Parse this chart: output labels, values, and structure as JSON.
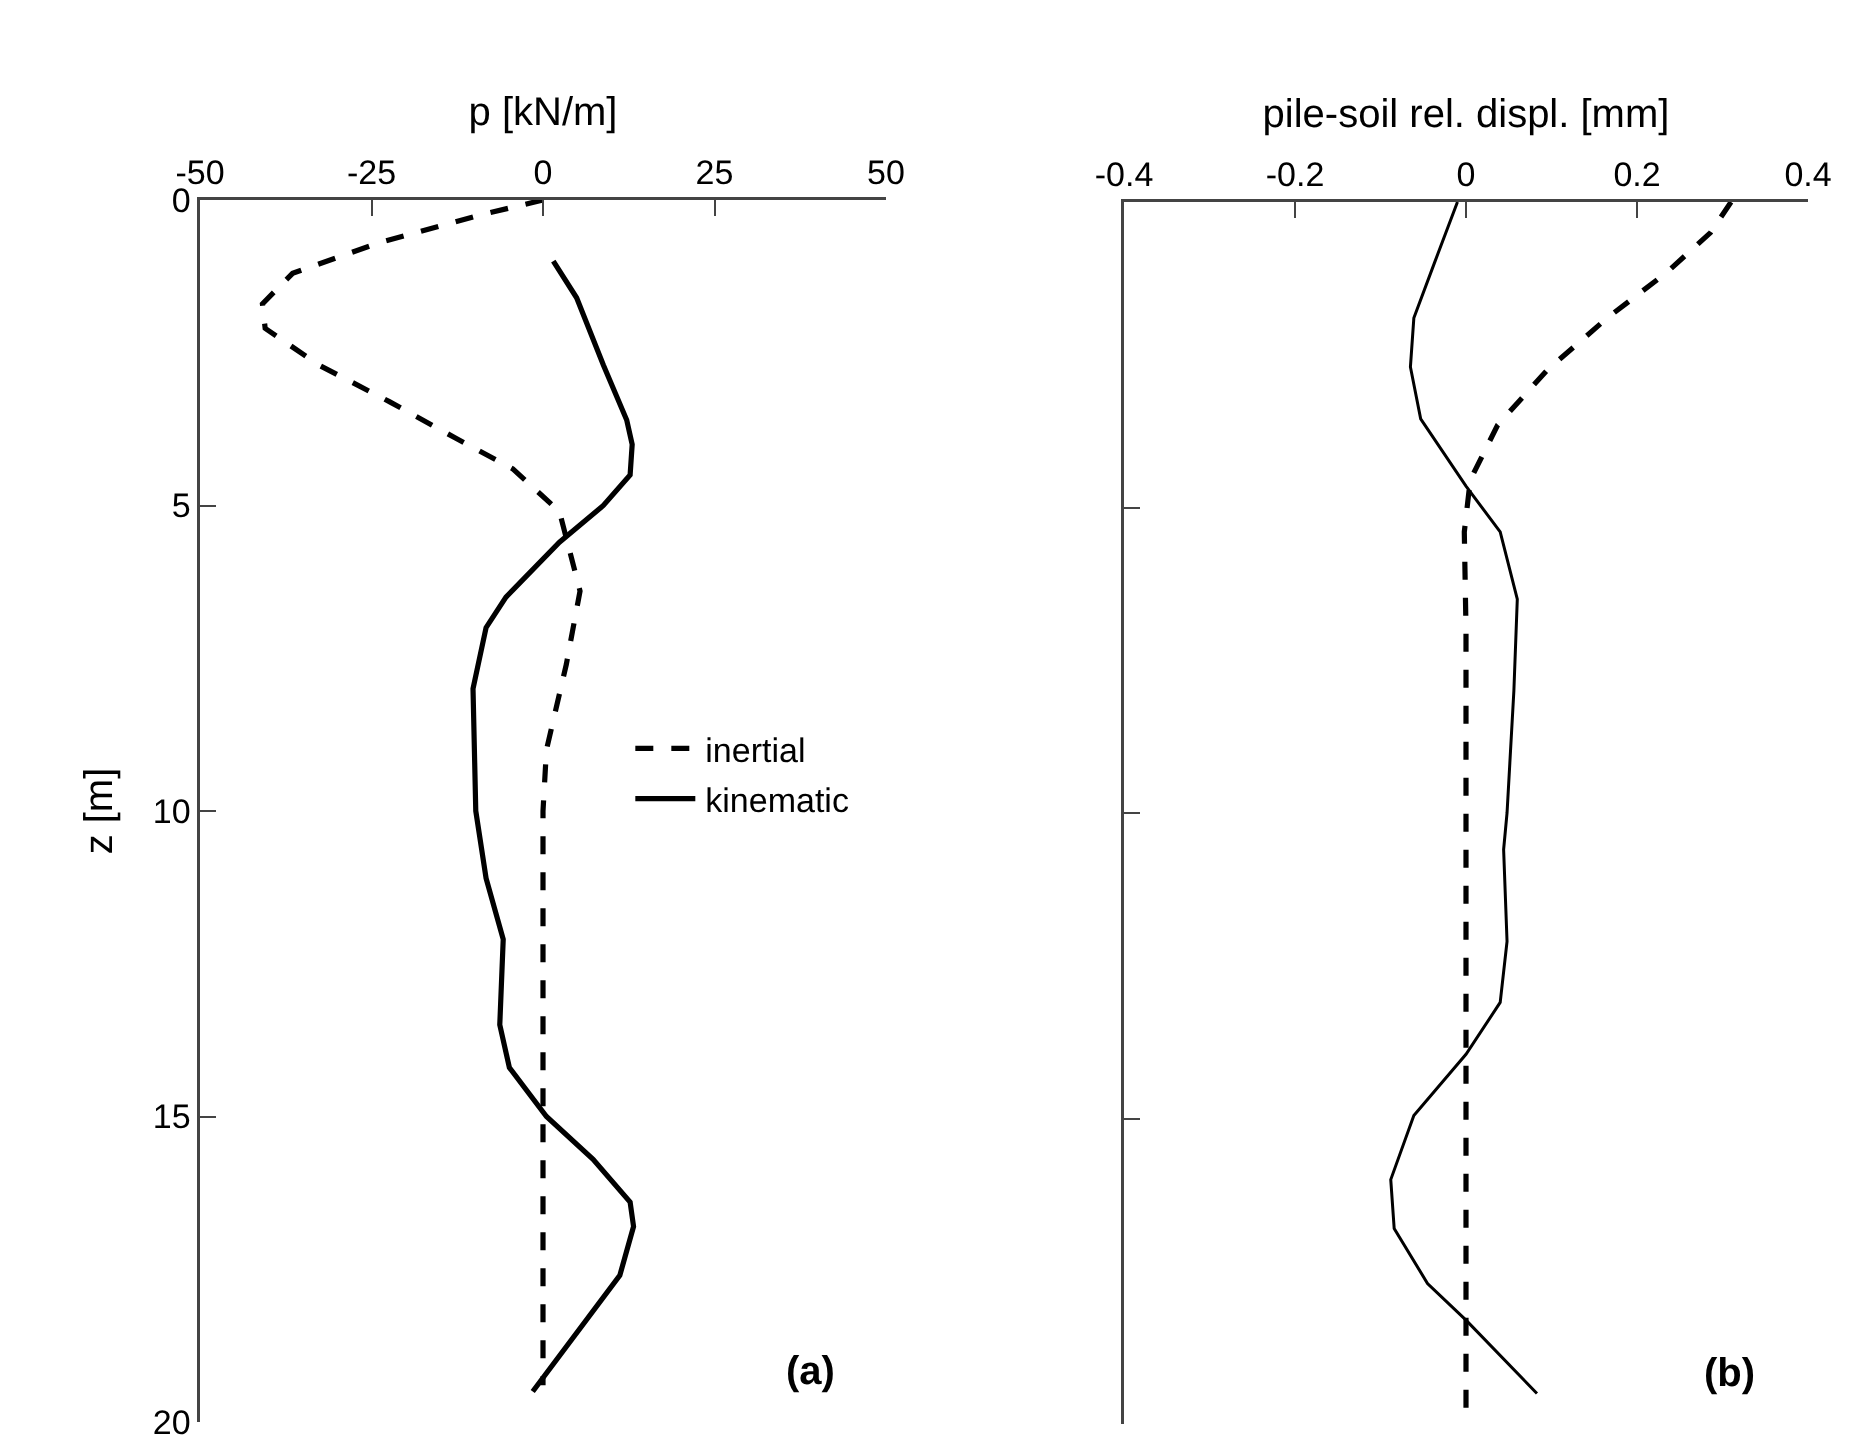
{
  "chart_data": [
    {
      "type": "line",
      "xlabel": "p [kN/m]",
      "ylabel": "z [m]",
      "xlim": [
        -50,
        50
      ],
      "xticks": [
        -50,
        -25,
        0,
        25,
        50
      ],
      "ylim": [
        20,
        0
      ],
      "yticks": [
        0,
        5,
        10,
        15,
        20
      ],
      "grid": false,
      "legend": "right",
      "annotations": [
        "(a)"
      ],
      "series": [
        {
          "name": "inertial",
          "color": "#000000",
          "line_style": "dashed",
          "x": [
            0,
            -9.3,
            -23.9,
            -36.5,
            -40.9,
            -40.5,
            -32.7,
            -22.4,
            -12.7,
            -4.4,
            2.4,
            5.4,
            3.4,
            0.5,
            0,
            0
          ],
          "values": [
            0,
            0.25,
            0.7,
            1.2,
            1.7,
            2.1,
            2.7,
            3.3,
            3.9,
            4.4,
            5.1,
            6.4,
            7.6,
            9.0,
            10.0,
            19.4
          ]
        },
        {
          "name": "kinematic",
          "color": "#000000",
          "line_style": "solid",
          "x": [
            1.5,
            4.9,
            8.8,
            12.2,
            13.0,
            12.7,
            8.8,
            2.4,
            -5.4,
            -8.3,
            -10.2,
            -9.8,
            -8.3,
            -5.8,
            -6.3,
            -4.9,
            0.5,
            7.3,
            12.7,
            13.2,
            11.2,
            -1.5
          ],
          "values": [
            1.0,
            1.6,
            2.7,
            3.6,
            4.0,
            4.5,
            5.0,
            5.6,
            6.5,
            7.0,
            8.0,
            10.0,
            11.1,
            12.1,
            13.5,
            14.2,
            15.0,
            15.7,
            16.4,
            16.8,
            17.6,
            19.5
          ]
        }
      ]
    },
    {
      "type": "line",
      "xlabel": "pile-soil rel. displ. [mm]",
      "xlim": [
        -0.4,
        0.4
      ],
      "xticks": [
        -0.4,
        -0.2,
        0,
        0.2,
        0.4
      ],
      "ylim": [
        20,
        0
      ],
      "yticks": [
        0,
        5,
        10,
        15,
        20
      ],
      "grid": false,
      "tick_labels": "x",
      "annotations": [
        "(b)"
      ],
      "series": [
        {
          "color": "#000000",
          "line_style": "dashed",
          "x": [
            0.31,
            0.286,
            0.235,
            0.165,
            0.095,
            0.037,
            0.005,
            -0.002,
            0,
            0
          ],
          "values": [
            0,
            0.5,
            1.15,
            1.9,
            2.75,
            3.65,
            4.55,
            5.4,
            7.0,
            20.0
          ]
        },
        {
          "color": "#000000",
          "line_style": "solid",
          "x": [
            -0.01,
            -0.037,
            -0.061,
            -0.065,
            -0.053,
            0.0,
            0.04,
            0.06,
            0.056,
            0.048,
            0.044,
            0.048,
            0.04,
            0.0,
            -0.061,
            -0.088,
            -0.084,
            -0.045,
            0.0,
            0.083
          ],
          "values": [
            0,
            1.0,
            1.9,
            2.7,
            3.55,
            4.65,
            5.4,
            6.5,
            8.0,
            10.0,
            10.6,
            12.1,
            13.1,
            13.95,
            14.95,
            16.0,
            16.8,
            17.7,
            18.3,
            19.5
          ]
        }
      ]
    }
  ]
}
